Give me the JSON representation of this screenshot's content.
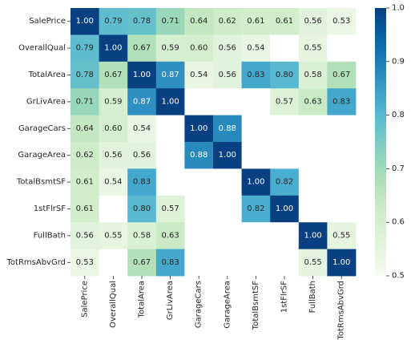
{
  "chart_data": {
    "type": "heatmap",
    "title": "",
    "xlabel": "",
    "ylabel": "",
    "x_categories": [
      "SalePrice",
      "OverallQual",
      "TotalArea",
      "GrLivArea",
      "GarageCars",
      "GarageArea",
      "TotalBsmtSF",
      "1stFlrSF",
      "FullBath",
      "TotRmsAbvGrd"
    ],
    "y_categories": [
      "SalePrice",
      "OverallQual",
      "TotalArea",
      "GrLivArea",
      "GarageCars",
      "GarageArea",
      "TotalBsmtSF",
      "1stFlrSF",
      "FullBath",
      "TotRmsAbvGrd"
    ],
    "values": [
      [
        1.0,
        0.79,
        0.78,
        0.71,
        0.64,
        0.62,
        0.61,
        0.61,
        0.56,
        0.53
      ],
      [
        0.79,
        1.0,
        0.67,
        0.59,
        0.6,
        0.56,
        0.54,
        null,
        0.55,
        null
      ],
      [
        0.78,
        0.67,
        1.0,
        0.87,
        0.54,
        0.56,
        0.83,
        0.8,
        0.58,
        0.67
      ],
      [
        0.71,
        0.59,
        0.87,
        1.0,
        null,
        null,
        null,
        0.57,
        0.63,
        0.83
      ],
      [
        0.64,
        0.6,
        0.54,
        null,
        1.0,
        0.88,
        null,
        null,
        null,
        null
      ],
      [
        0.62,
        0.56,
        0.56,
        null,
        0.88,
        1.0,
        null,
        null,
        null,
        null
      ],
      [
        0.61,
        0.54,
        0.83,
        null,
        null,
        null,
        1.0,
        0.82,
        null,
        null
      ],
      [
        0.61,
        null,
        0.8,
        0.57,
        null,
        null,
        0.82,
        1.0,
        null,
        null
      ],
      [
        0.56,
        0.55,
        0.58,
        0.63,
        null,
        null,
        null,
        null,
        1.0,
        0.55
      ],
      [
        0.53,
        null,
        0.67,
        0.83,
        null,
        null,
        null,
        null,
        0.55,
        1.0
      ]
    ],
    "annotation_format": "0.00",
    "colormap": "GnBu",
    "vmin": 0.5,
    "vmax": 1.0,
    "colorbar": {
      "ticks": [
        0.5,
        0.6,
        0.7,
        0.8,
        0.9,
        1.0
      ],
      "tick_labels": [
        "0.5",
        "0.6",
        "0.7",
        "0.8",
        "0.9",
        "1.0"
      ]
    },
    "missing_cell_color": "#ffffff",
    "grid": false
  }
}
